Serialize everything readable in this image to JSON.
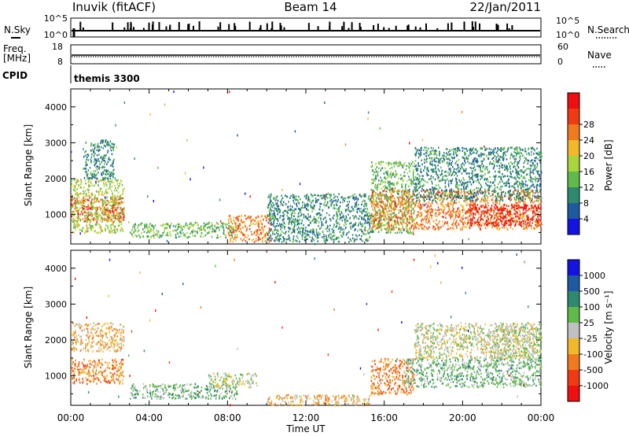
{
  "header": {
    "station": "Inuvik (fitACF)",
    "beam": "Beam 14",
    "date": "22/Jan/2011"
  },
  "panels": {
    "nsky": {
      "left_label": "N.Sky",
      "right_label": "N.Search",
      "left_ticks": [
        "10^5",
        "10^0"
      ],
      "right_ticks": [
        "10^5",
        "10^0"
      ]
    },
    "freq": {
      "left_label_1": "Freq.",
      "left_label_2": "[MHz]",
      "right_label": "Nave",
      "left_ticks": [
        "18",
        "8"
      ],
      "right_ticks": [
        "60",
        "0"
      ]
    },
    "cpid": {
      "left_label": "CPID",
      "value_label": "themis 3300"
    }
  },
  "chart_data": [
    {
      "type": "heatmap",
      "name": "power",
      "ylabel": "Slant Range [km]",
      "ylim": [
        180,
        4500
      ],
      "yticks": [
        1000,
        2000,
        3000,
        4000
      ],
      "xlabel": "Time UT",
      "xlim": [
        0,
        24
      ],
      "xticks": [
        "00:00",
        "04:00",
        "08:00",
        "12:00",
        "16:00",
        "20:00",
        "00:00"
      ],
      "colorbar": {
        "label": "Power [dB]",
        "ticks": [
          "4",
          "8",
          "12",
          "16",
          "20",
          "24",
          "28"
        ],
        "colors": [
          "#1414e0",
          "#1e5aa0",
          "#2e8a6e",
          "#5fba4a",
          "#a9d43a",
          "#f0b82a",
          "#f07a1e",
          "#f03a14",
          "#ee1010"
        ]
      },
      "regions": [
        {
          "x": [
            0.0,
            2.7
          ],
          "y": [
            800,
            1500
          ],
          "level": 7
        },
        {
          "x": [
            0.0,
            2.7
          ],
          "y": [
            500,
            2000
          ],
          "level": 4
        },
        {
          "x": [
            0.6,
            2.2
          ],
          "y": [
            2000,
            3100
          ],
          "level": 2
        },
        {
          "x": [
            3.0,
            8.5
          ],
          "y": [
            380,
            800
          ],
          "level": 3
        },
        {
          "x": [
            8.0,
            10.2
          ],
          "y": [
            250,
            1000
          ],
          "level": 6
        },
        {
          "x": [
            10.0,
            15.3
          ],
          "y": [
            250,
            1600
          ],
          "level": 2
        },
        {
          "x": [
            15.3,
            17.5
          ],
          "y": [
            500,
            2500
          ],
          "level": 3
        },
        {
          "x": [
            15.3,
            24.0
          ],
          "y": [
            600,
            1700
          ],
          "level": 6
        },
        {
          "x": [
            17.5,
            24.0
          ],
          "y": [
            1400,
            2900
          ],
          "level": 2
        },
        {
          "x": [
            20.3,
            24.0
          ],
          "y": [
            700,
            1300
          ],
          "level": 8
        }
      ]
    },
    {
      "type": "heatmap",
      "name": "velocity",
      "ylabel": "Slant Range [km]",
      "ylim": [
        180,
        4500
      ],
      "yticks": [
        1000,
        2000,
        3000,
        4000
      ],
      "xlabel": "Time UT",
      "xlim": [
        0,
        24
      ],
      "xticks": [
        "00:00",
        "04:00",
        "08:00",
        "12:00",
        "16:00",
        "20:00",
        "00:00"
      ],
      "colorbar": {
        "label": "Velocity [m s⁻¹]",
        "ticks": [
          "1000",
          "500",
          "100",
          "25",
          "-25",
          "-100",
          "-500",
          "-1000"
        ],
        "colors": [
          "#1414e0",
          "#1e5aa0",
          "#2e8a6e",
          "#5fba4a",
          "#c0c0c0",
          "#f0b82a",
          "#f07a1e",
          "#f03a14",
          "#ee1010"
        ]
      },
      "regions": [
        {
          "x": [
            0.0,
            2.7
          ],
          "y": [
            800,
            1500
          ],
          "level": 6
        },
        {
          "x": [
            0.0,
            2.7
          ],
          "y": [
            1700,
            2500
          ],
          "level": 5
        },
        {
          "x": [
            3.0,
            8.5
          ],
          "y": [
            380,
            800
          ],
          "level": 3
        },
        {
          "x": [
            7.0,
            9.5
          ],
          "y": [
            700,
            1100
          ],
          "level": 4
        },
        {
          "x": [
            10.0,
            15.3
          ],
          "y": [
            200,
            500
          ],
          "level": 5
        },
        {
          "x": [
            15.3,
            17.5
          ],
          "y": [
            500,
            1500
          ],
          "level": 6
        },
        {
          "x": [
            17.0,
            24.0
          ],
          "y": [
            700,
            1500
          ],
          "level": 3
        },
        {
          "x": [
            17.5,
            24.0
          ],
          "y": [
            1500,
            2500
          ],
          "level": 4
        },
        {
          "x": [
            21.5,
            24.0
          ],
          "y": [
            1500,
            2400
          ],
          "level": 4
        }
      ]
    }
  ]
}
